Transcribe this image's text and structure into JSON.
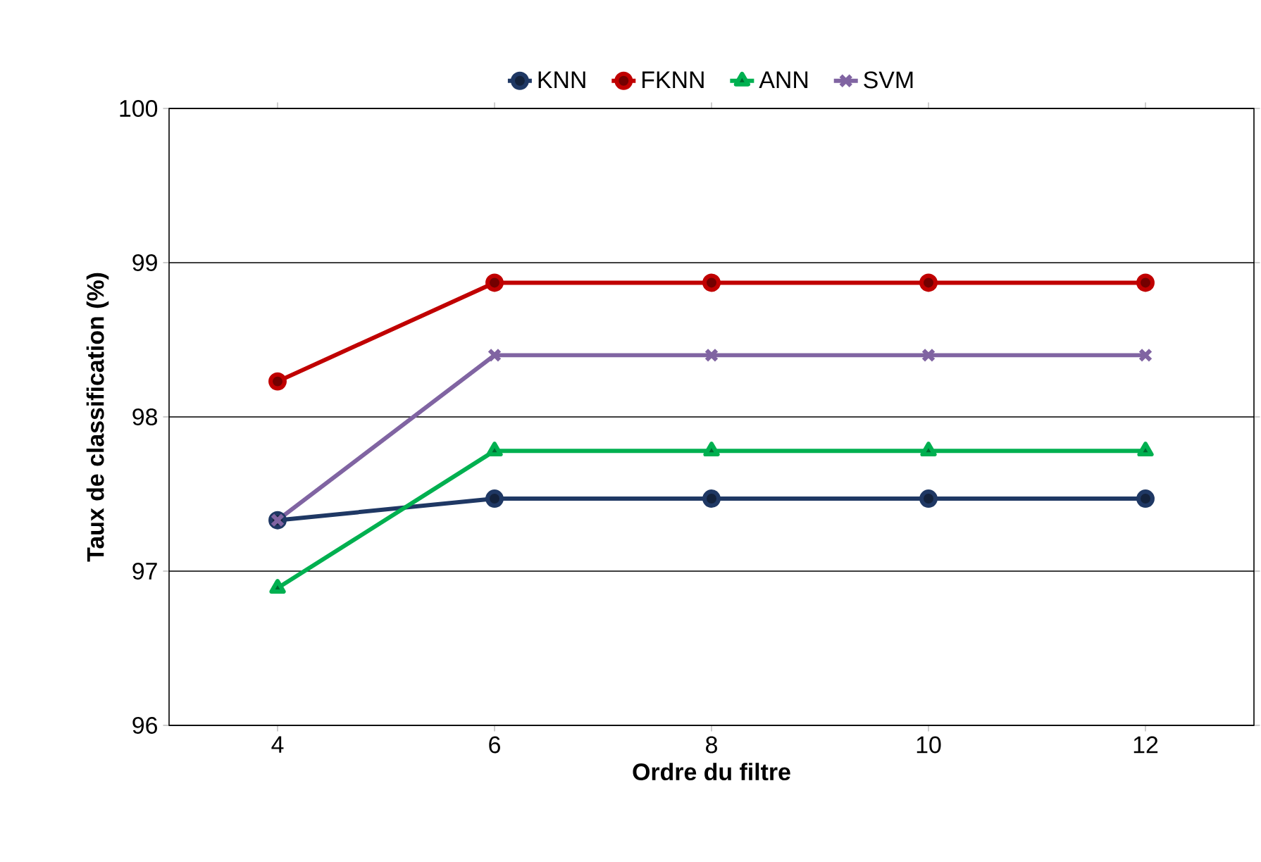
{
  "chart_data": {
    "type": "line",
    "xlabel": "Ordre du filtre",
    "ylabel": "Taux de classification (%)",
    "categories": [
      "4",
      "6",
      "8",
      "10",
      "12"
    ],
    "series": [
      {
        "name": "KNN",
        "color": "#1f3864",
        "marker": "circle",
        "values": [
          97.33,
          97.47,
          97.47,
          97.47,
          97.47
        ]
      },
      {
        "name": "FKNN",
        "color": "#c00000",
        "marker": "circle",
        "values": [
          98.23,
          98.87,
          98.87,
          98.87,
          98.87
        ]
      },
      {
        "name": "ANN",
        "color": "#00b050",
        "marker": "triangle",
        "values": [
          96.89,
          97.78,
          97.78,
          97.78,
          97.78
        ]
      },
      {
        "name": "SVM",
        "color": "#8064a2",
        "marker": "cross",
        "values": [
          97.33,
          98.4,
          98.4,
          98.4,
          98.4
        ]
      }
    ],
    "ylim": [
      96,
      100
    ],
    "yticks": [
      96,
      97,
      98,
      99,
      100
    ],
    "grid": "y",
    "legend": "top",
    "line_style": "solid"
  }
}
